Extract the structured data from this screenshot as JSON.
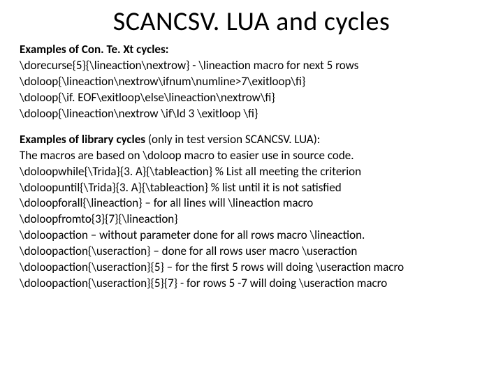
{
  "title": "SCANCSV. LUA and cycles",
  "section1": {
    "heading": "Examples of Con. Te. Xt cycles:",
    "lines": [
      "\\dorecurse{5}{\\lineaction\\nextrow}  - \\lineaction macro for next 5 rows",
      "\\doloop{\\lineaction\\nextrow\\ifnum\\numline>7\\exitloop\\fi}",
      "\\doloop{\\if. EOF\\exitloop\\else\\lineaction\\nextrow\\fi}",
      "\\doloop{\\lineaction\\nextrow \\if\\Id 3 \\exitloop \\fi}"
    ]
  },
  "section2": {
    "heading_prefix": "Examples of library cycles",
    "heading_suffix": " (only in test version SCANCSV. LUA):",
    "lines": [
      "The macros are based on \\doloop macro to easier use in source code.",
      "\\doloopwhile{\\Trida}{3. A}{\\tableaction} % List all meeting the criterion",
      "\\doloopuntil{\\Trida}{3. A}{\\tableaction}  % list until it is not satisfied",
      "\\doloopforall{\\lineaction} – for all lines will \\lineaction macro",
      "\\doloopfromto{3}{7}{\\lineaction}",
      "\\doloopaction – without parameter done for all rows macro \\lineaction.",
      "\\doloopaction{\\useraction} – done for all rows user macro \\useraction",
      "\\doloopaction{\\useraction}{5} – for the first 5 rows will doing \\useraction macro",
      "\\doloopaction{\\useraction}{5}{7}  - for rows 5 -7 will doing \\useraction macro"
    ]
  }
}
